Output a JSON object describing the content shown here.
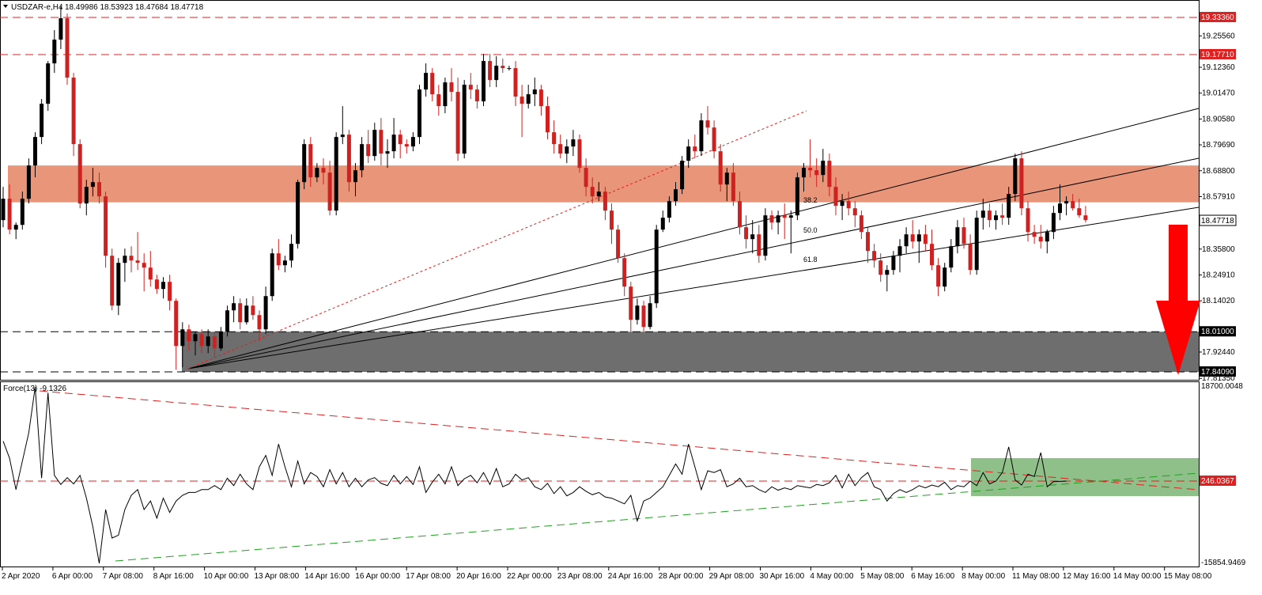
{
  "header": {
    "symbol_timeframe": "USDZAR-e,H4",
    "ohlc": "18.49986 18.53923 18.47684 18.47718"
  },
  "indicator": {
    "title": "Force(13) -9.1326",
    "scale_top": "18700.0048",
    "scale_bottom": "-15854.9469",
    "level_value": "246.0367",
    "level_line": 246.0367
  },
  "colors": {
    "bull": "#000000",
    "bear": "#d02020",
    "resistance_zone": "#e8957a",
    "support_zone": "#6e6e6e",
    "force_zone": "#8fc08a",
    "arrow": "#ff0000",
    "dashed_red": "#e02020"
  },
  "chart_data": {
    "type": "candlestick",
    "price_axis": {
      "ticks": [
        "19.25560",
        "19.12360",
        "19.01470",
        "18.90580",
        "18.79690",
        "18.68800",
        "18.57910",
        "18.46830",
        "18.35800",
        "18.24910",
        "18.14020",
        "17.92440",
        "17.81350"
      ],
      "ylim": [
        17.8135,
        19.3336
      ]
    },
    "time_axis": {
      "labels": [
        "2 Apr 2020",
        "6 Apr 00:00",
        "7 Apr 08:00",
        "8 Apr 16:00",
        "10 Apr 00:00",
        "13 Apr 08:00",
        "14 Apr 16:00",
        "16 Apr 00:00",
        "17 Apr 08:00",
        "20 Apr 16:00",
        "22 Apr 00:00",
        "23 Apr 08:00",
        "24 Apr 16:00",
        "28 Apr 00:00",
        "29 Apr 08:00",
        "30 Apr 16:00",
        "4 May 00:00",
        "5 May 08:00",
        "6 May 16:00",
        "8 May 00:00",
        "11 May 08:00",
        "12 May 16:00",
        "14 May 00:00",
        "15 May 08:00"
      ]
    },
    "levels": [
      {
        "price": 19.3336,
        "label": "19.33360",
        "style": "red-dashed"
      },
      {
        "price": 19.1771,
        "label": "19.17710",
        "style": "red-dashed"
      },
      {
        "price": 18.01,
        "label": "18.01000",
        "style": "black-dashed"
      },
      {
        "price": 17.8409,
        "label": "17.84090",
        "style": "black-dashed"
      }
    ],
    "current_price": {
      "price": 18.47718,
      "label": "18.47718"
    },
    "zones": [
      {
        "name": "resistance",
        "from": 18.555,
        "to": 18.71
      },
      {
        "name": "support",
        "from": 17.8409,
        "to": 18.01
      }
    ],
    "fib_fan_labels": [
      "38.2",
      "50.0",
      "61.8"
    ],
    "candles": [
      [
        18.48,
        18.62,
        18.45,
        18.57
      ],
      [
        18.57,
        18.63,
        18.42,
        18.44
      ],
      [
        18.44,
        18.47,
        18.4,
        18.46
      ],
      [
        18.46,
        18.6,
        18.44,
        18.57
      ],
      [
        18.57,
        18.74,
        18.55,
        18.71
      ],
      [
        18.71,
        18.85,
        18.66,
        18.83
      ],
      [
        18.83,
        18.99,
        18.8,
        18.97
      ],
      [
        18.97,
        19.15,
        18.94,
        19.14
      ],
      [
        19.14,
        19.28,
        19.1,
        19.24
      ],
      [
        19.24,
        19.38,
        19.2,
        19.33
      ],
      [
        19.33,
        19.35,
        19.05,
        19.08
      ],
      [
        19.08,
        19.1,
        18.75,
        18.8
      ],
      [
        18.8,
        18.82,
        18.53,
        18.55
      ],
      [
        18.55,
        18.65,
        18.5,
        18.62
      ],
      [
        18.62,
        18.7,
        18.58,
        18.64
      ],
      [
        18.64,
        18.68,
        18.55,
        18.58
      ],
      [
        18.58,
        18.6,
        18.28,
        18.33
      ],
      [
        18.33,
        18.36,
        18.1,
        18.12
      ],
      [
        18.12,
        18.32,
        18.08,
        18.3
      ],
      [
        18.3,
        18.36,
        18.22,
        18.33
      ],
      [
        18.33,
        18.37,
        18.26,
        18.31
      ],
      [
        18.31,
        18.43,
        18.27,
        18.3
      ],
      [
        18.3,
        18.34,
        18.18,
        18.28
      ],
      [
        18.28,
        18.35,
        18.2,
        18.23
      ],
      [
        18.23,
        18.25,
        18.17,
        18.19
      ],
      [
        18.19,
        18.24,
        18.15,
        18.22
      ],
      [
        18.22,
        18.25,
        18.1,
        18.14
      ],
      [
        18.14,
        18.15,
        17.85,
        17.95
      ],
      [
        17.95,
        18.05,
        17.86,
        18.02
      ],
      [
        18.02,
        18.04,
        17.93,
        17.97
      ],
      [
        17.97,
        18.01,
        17.91,
        18.0
      ],
      [
        18.0,
        18.02,
        17.92,
        17.95
      ],
      [
        17.95,
        18.02,
        17.92,
        17.99
      ],
      [
        17.99,
        18.01,
        17.9,
        17.94
      ],
      [
        17.94,
        18.03,
        17.93,
        18.01
      ],
      [
        18.01,
        18.12,
        17.99,
        18.1
      ],
      [
        18.1,
        18.16,
        18.05,
        18.13
      ],
      [
        18.13,
        18.15,
        18.02,
        18.05
      ],
      [
        18.05,
        18.15,
        18.04,
        18.12
      ],
      [
        18.12,
        18.16,
        18.06,
        18.08
      ],
      [
        18.08,
        18.1,
        17.97,
        18.02
      ],
      [
        18.02,
        18.2,
        18.0,
        18.16
      ],
      [
        18.16,
        18.36,
        18.14,
        18.34
      ],
      [
        18.34,
        18.4,
        18.27,
        18.29
      ],
      [
        18.29,
        18.33,
        18.26,
        18.31
      ],
      [
        18.31,
        18.42,
        18.28,
        18.38
      ],
      [
        18.38,
        18.65,
        18.36,
        18.64
      ],
      [
        18.64,
        18.82,
        18.61,
        18.8
      ],
      [
        18.8,
        18.83,
        18.62,
        18.66
      ],
      [
        18.66,
        18.72,
        18.64,
        18.7
      ],
      [
        18.7,
        18.74,
        18.63,
        18.68
      ],
      [
        18.68,
        18.73,
        18.5,
        18.52
      ],
      [
        18.52,
        18.85,
        18.5,
        18.83
      ],
      [
        18.83,
        18.96,
        18.8,
        18.84
      ],
      [
        18.84,
        18.86,
        18.6,
        18.64
      ],
      [
        18.64,
        18.72,
        18.58,
        18.69
      ],
      [
        18.69,
        18.83,
        18.66,
        18.8
      ],
      [
        18.8,
        18.86,
        18.72,
        18.75
      ],
      [
        18.75,
        18.89,
        18.73,
        18.86
      ],
      [
        18.86,
        18.91,
        18.71,
        18.76
      ],
      [
        18.76,
        18.82,
        18.7,
        18.77
      ],
      [
        18.77,
        18.91,
        18.74,
        18.84
      ],
      [
        18.84,
        18.86,
        18.74,
        18.8
      ],
      [
        18.8,
        18.82,
        18.76,
        18.79
      ],
      [
        18.79,
        18.85,
        18.77,
        18.83
      ],
      [
        18.83,
        19.05,
        18.8,
        19.03
      ],
      [
        19.03,
        19.14,
        19.0,
        19.1
      ],
      [
        19.1,
        19.12,
        18.98,
        19.01
      ],
      [
        19.01,
        19.05,
        18.92,
        18.96
      ],
      [
        18.96,
        19.08,
        18.93,
        19.06
      ],
      [
        19.06,
        19.12,
        18.98,
        19.02
      ],
      [
        19.02,
        19.08,
        18.73,
        18.76
      ],
      [
        18.76,
        19.07,
        18.74,
        19.05
      ],
      [
        19.05,
        19.1,
        18.99,
        19.03
      ],
      [
        19.03,
        19.05,
        18.95,
        18.98
      ],
      [
        18.98,
        19.18,
        18.96,
        19.15
      ],
      [
        19.15,
        19.18,
        19.04,
        19.07
      ],
      [
        19.07,
        19.17,
        19.04,
        19.13
      ],
      [
        19.13,
        19.16,
        19.1,
        19.12
      ],
      [
        19.12,
        19.13,
        19.11,
        19.12
      ],
      [
        19.12,
        19.15,
        18.96,
        19.0
      ],
      [
        19.0,
        19.05,
        18.83,
        18.97
      ],
      [
        18.97,
        19.05,
        18.95,
        19.01
      ],
      [
        19.01,
        19.08,
        18.96,
        19.03
      ],
      [
        19.03,
        19.05,
        18.92,
        18.96
      ],
      [
        18.96,
        19.0,
        18.82,
        18.85
      ],
      [
        18.85,
        18.9,
        18.76,
        18.8
      ],
      [
        18.8,
        18.84,
        18.74,
        18.76
      ],
      [
        18.76,
        18.82,
        18.72,
        18.79
      ],
      [
        18.79,
        18.86,
        18.75,
        18.82
      ],
      [
        18.82,
        18.84,
        18.68,
        18.7
      ],
      [
        18.7,
        18.74,
        18.58,
        18.62
      ],
      [
        18.62,
        18.66,
        18.55,
        18.58
      ],
      [
        18.58,
        18.64,
        18.56,
        18.6
      ],
      [
        18.6,
        18.62,
        18.48,
        18.52
      ],
      [
        18.52,
        18.55,
        18.38,
        18.44
      ],
      [
        18.44,
        18.46,
        18.3,
        18.32
      ],
      [
        18.32,
        18.34,
        18.16,
        18.2
      ],
      [
        18.2,
        18.22,
        18.01,
        18.06
      ],
      [
        18.06,
        18.15,
        18.04,
        18.12
      ],
      [
        18.12,
        18.14,
        18.01,
        18.03
      ],
      [
        18.03,
        18.16,
        18.02,
        18.13
      ],
      [
        18.13,
        18.46,
        18.11,
        18.44
      ],
      [
        18.44,
        18.52,
        18.43,
        18.49
      ],
      [
        18.49,
        18.58,
        18.47,
        18.56
      ],
      [
        18.56,
        18.64,
        18.54,
        18.61
      ],
      [
        18.61,
        18.75,
        18.59,
        18.73
      ],
      [
        18.73,
        18.82,
        18.7,
        18.79
      ],
      [
        18.79,
        18.84,
        18.74,
        18.77
      ],
      [
        18.77,
        18.93,
        18.75,
        18.9
      ],
      [
        18.9,
        18.96,
        18.84,
        18.87
      ],
      [
        18.87,
        18.9,
        18.74,
        18.77
      ],
      [
        18.77,
        18.8,
        18.6,
        18.63
      ],
      [
        18.63,
        18.7,
        18.56,
        18.68
      ],
      [
        18.68,
        18.72,
        18.54,
        18.56
      ],
      [
        18.56,
        18.6,
        18.42,
        18.45
      ],
      [
        18.45,
        18.5,
        18.36,
        18.4
      ],
      [
        18.4,
        18.48,
        18.34,
        18.42
      ],
      [
        18.42,
        18.46,
        18.3,
        18.33
      ],
      [
        18.33,
        18.53,
        18.31,
        18.5
      ],
      [
        18.5,
        18.52,
        18.44,
        18.47
      ],
      [
        18.47,
        18.52,
        18.42,
        18.5
      ],
      [
        18.5,
        18.55,
        18.4,
        18.49
      ],
      [
        18.49,
        18.52,
        18.34,
        18.5
      ],
      [
        18.5,
        18.68,
        18.48,
        18.66
      ],
      [
        18.66,
        18.72,
        18.6,
        18.7
      ],
      [
        18.7,
        18.82,
        18.66,
        18.69
      ],
      [
        18.69,
        18.74,
        18.62,
        18.67
      ],
      [
        18.67,
        18.78,
        18.64,
        18.73
      ],
      [
        18.73,
        18.76,
        18.58,
        18.62
      ],
      [
        18.62,
        18.66,
        18.5,
        18.54
      ],
      [
        18.54,
        18.59,
        18.48,
        18.56
      ],
      [
        18.56,
        18.6,
        18.5,
        18.53
      ],
      [
        18.53,
        18.56,
        18.45,
        18.5
      ],
      [
        18.5,
        18.52,
        18.4,
        18.43
      ],
      [
        18.43,
        18.45,
        18.3,
        18.35
      ],
      [
        18.35,
        18.38,
        18.28,
        18.31
      ],
      [
        18.31,
        18.34,
        18.22,
        18.25
      ],
      [
        18.25,
        18.29,
        18.18,
        18.27
      ],
      [
        18.27,
        18.35,
        18.25,
        18.33
      ],
      [
        18.33,
        18.4,
        18.26,
        18.37
      ],
      [
        18.37,
        18.45,
        18.34,
        18.42
      ],
      [
        18.42,
        18.48,
        18.36,
        18.39
      ],
      [
        18.39,
        18.44,
        18.3,
        18.42
      ],
      [
        18.42,
        18.46,
        18.35,
        18.38
      ],
      [
        18.38,
        18.44,
        18.27,
        18.29
      ],
      [
        18.29,
        18.32,
        18.16,
        18.2
      ],
      [
        18.2,
        18.3,
        18.18,
        18.28
      ],
      [
        18.28,
        18.4,
        18.26,
        18.37
      ],
      [
        18.37,
        18.48,
        18.34,
        18.45
      ],
      [
        18.45,
        18.49,
        18.36,
        18.38
      ],
      [
        18.38,
        18.42,
        18.25,
        18.27
      ],
      [
        18.27,
        18.52,
        18.25,
        18.49
      ],
      [
        18.49,
        18.57,
        18.44,
        18.52
      ],
      [
        18.52,
        18.55,
        18.45,
        18.48
      ],
      [
        18.48,
        18.52,
        18.44,
        18.5
      ],
      [
        18.5,
        18.55,
        18.46,
        18.49
      ],
      [
        18.49,
        18.62,
        18.46,
        18.59
      ],
      [
        18.59,
        18.76,
        18.56,
        18.74
      ],
      [
        18.74,
        18.77,
        18.5,
        18.53
      ],
      [
        18.53,
        18.56,
        18.39,
        18.43
      ],
      [
        18.43,
        18.46,
        18.38,
        18.41
      ],
      [
        18.41,
        18.46,
        18.36,
        18.39
      ],
      [
        18.39,
        18.44,
        18.34,
        18.43
      ],
      [
        18.43,
        18.54,
        18.4,
        18.51
      ],
      [
        18.51,
        18.63,
        18.48,
        18.55
      ],
      [
        18.55,
        18.58,
        18.5,
        18.56
      ],
      [
        18.56,
        18.59,
        18.52,
        18.53
      ],
      [
        18.53,
        18.57,
        18.49,
        18.5
      ],
      [
        18.5,
        18.54,
        18.47,
        18.48
      ]
    ],
    "force_series": [
      7000,
      4000,
      -1500,
      3500,
      8500,
      16500,
      500,
      15500,
      1000,
      -600,
      600,
      -500,
      1000,
      -3000,
      -8000,
      -15000,
      -5000,
      -10000,
      -9500,
      -5000,
      -2500,
      -1500,
      -5000,
      -3500,
      -6500,
      -3000,
      -5500,
      -3500,
      -2500,
      -2000,
      -2000,
      -1500,
      -1500,
      -800,
      -1500,
      500,
      -800,
      1200,
      -500,
      -1500,
      2500,
      4500,
      1000,
      6500,
      2500,
      -1000,
      3500,
      -500,
      1500,
      800,
      -1000,
      2000,
      -500,
      1500,
      -1000,
      500,
      -1000,
      200,
      600,
      -400,
      -800,
      1000,
      -500,
      800,
      -600,
      2500,
      -2000,
      -200,
      1200,
      -500,
      2500,
      -800,
      400,
      1000,
      -300,
      1500,
      -600,
      2200,
      -1000,
      -500,
      1200,
      200,
      600,
      -1000,
      -1500,
      -400,
      -2200,
      -1000,
      -2600,
      -2000,
      -1000,
      -1800,
      -2400,
      -2000,
      -2800,
      -3000,
      -3500,
      -4000,
      -2500,
      -7000,
      -3500,
      -3000,
      -2000,
      -1000,
      1000,
      3000,
      1200,
      6500,
      2500,
      -1500,
      1800,
      1500,
      2000,
      -1000,
      -500,
      500,
      -1000,
      -800,
      -1500,
      -2000,
      -1000,
      -1600,
      -1200,
      -1500,
      -800,
      -1000,
      -1200,
      -600,
      -800,
      -300,
      1000,
      -1200,
      1200,
      -800,
      600,
      1500,
      -1000,
      -1500,
      -3500,
      -2200,
      -1500,
      -2000,
      -1500,
      -800,
      -1200,
      -700,
      -1000,
      -200,
      -1500,
      -800,
      -1000,
      0,
      -800,
      1500,
      -500,
      0,
      1500,
      6000,
      200,
      -700,
      1200,
      800,
      5000,
      -1000,
      -100,
      -50,
      -9
    ]
  }
}
